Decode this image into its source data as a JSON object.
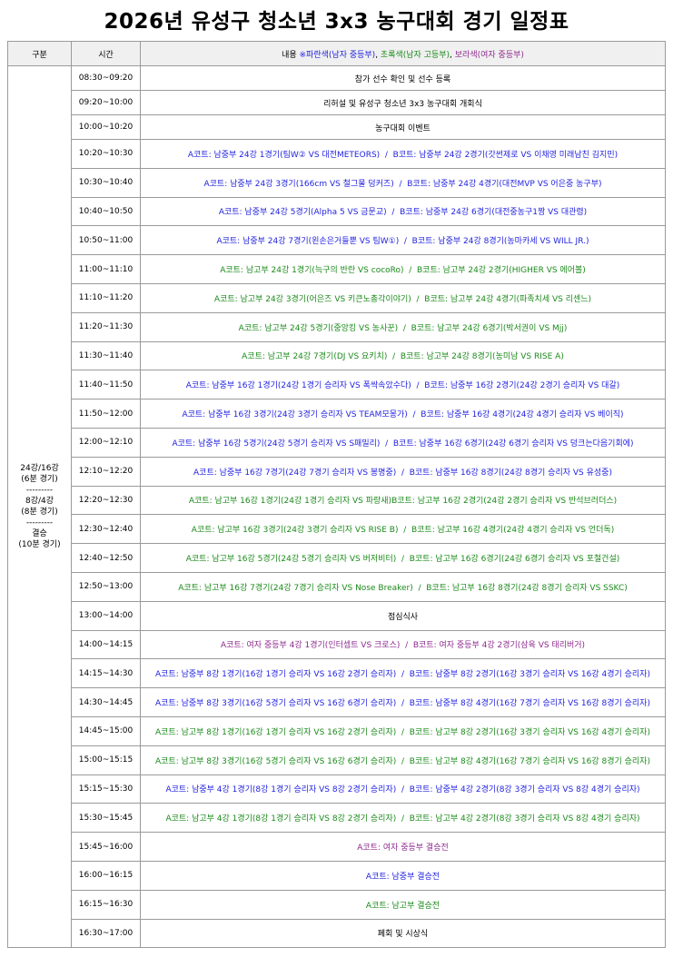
{
  "title": "2026년 유성구 청소년 3x3 농구대회 경기 일정표",
  "header": {
    "group": "구분",
    "time": "시간",
    "content": [
      {
        "text": "내용 ",
        "color": "#000000"
      },
      {
        "text": "※파란색(남자 중등부)",
        "color": "#1f1fe0"
      },
      {
        "text": ", ",
        "color": "#000000"
      },
      {
        "text": "초록색(남자 고등부)",
        "color": "#1b8a1b"
      },
      {
        "text": ", ",
        "color": "#000000"
      },
      {
        "text": "보라색(여자 중등부)",
        "color": "#8e2a8e"
      }
    ]
  },
  "group_label": [
    "24강/16강",
    "(6분 경기)",
    "---------",
    "8강/4강",
    "(8분 경기)",
    "---------",
    "결승",
    "(10분 경기)"
  ],
  "rows": [
    {
      "time": "08:30~09:20",
      "content": "참가 선수 확인 및 선수 등록",
      "color": "#000000"
    },
    {
      "time": "09:20~10:00",
      "content": "리허설 및 유성구 청소년 3x3 농구대회 개회식",
      "color": "#000000"
    },
    {
      "time": "10:00~10:20",
      "content": "농구대회 이벤트",
      "color": "#000000"
    },
    {
      "time": "10:20~10:30",
      "content": "A코트: 남중부 24강 1경기(팀W② VS 대전METEORS)  /  B코트: 남중부 24강 2경기(갓썬제로 VS 이채영 미래남친 김지민)",
      "color": "#1f1fe0"
    },
    {
      "time": "10:30~10:40",
      "content": "A코트: 남중부 24강 3경기(166cm VS 철그물 덩커즈)  /  B코트: 남중부 24강 4경기(대전MVP VS 어은중 농구부)",
      "color": "#1f1fe0"
    },
    {
      "time": "10:40~10:50",
      "content": "A코트: 남중부 24강 5경기(Alpha 5 VS 금문교)  /  B코트: 남중부 24강 6경기(대전중농구1짱 VS 대관령)",
      "color": "#1f1fe0"
    },
    {
      "time": "10:50~11:00",
      "content": "A코트: 남중부 24강 7경기(왼손은거들뿐 VS 팀W①)  /  B코트: 남중부 24강 8경기(농마카세 VS WILL JR.)",
      "color": "#1f1fe0"
    },
    {
      "time": "11:00~11:10",
      "content": "A코트: 남고부 24강 1경기(늑구의 반란 VS cocoRo)  /  B코트: 남고부 24강 2경기(HIGHER VS 에어볼)",
      "color": "#1b8a1b"
    },
    {
      "time": "11:10~11:20",
      "content": "A코트: 남고부 24강 3경기(어은즈 VS 키큰노총각이야기)  /  B코트: 남고부 24강 4경기(파족치세 VS 리센느)",
      "color": "#1b8a1b"
    },
    {
      "time": "11:20~11:30",
      "content": "A코트: 남고부 24강 5경기(중앙킹 VS 농사꾼)  /  B코트: 남고부 24강 6경기(박서권이 VS Mjj)",
      "color": "#1b8a1b"
    },
    {
      "time": "11:30~11:40",
      "content": "A코트: 남고부 24강 7경기(DJ VS 요키치)  /  B코트: 남고부 24강 8경기(농미남 VS RISE A)",
      "color": "#1b8a1b"
    },
    {
      "time": "11:40~11:50",
      "content": "A코트: 남중부 16강 1경기(24강 1경기 승리자 VS 폭싹속았수다)  /  B코트: 남중부 16강 2경기(24강 2경기 승리자 VS 대갈)",
      "color": "#1f1fe0"
    },
    {
      "time": "11:50~12:00",
      "content": "A코트: 남중부 16강 3경기(24강 3경기 승리자 VS TEAM모몽가)  /  B코트: 남중부 16강 4경기(24강 4경기 승리자 VS 베이직)",
      "color": "#1f1fe0"
    },
    {
      "time": "12:00~12:10",
      "content": "A코트: 남중부 16강 5경기(24강 5경기 승리자 VS S패밀리)  /  B코트: 남중부 16강 6경기(24강 6경기 승리자 VS 덩크는다음기회에)",
      "color": "#1f1fe0"
    },
    {
      "time": "12:10~12:20",
      "content": "A코트: 남중부 16강 7경기(24강 7경기 승리자 VS 봉명중)  /  B코트: 남중부 16강 8경기(24강 8경기 승리자 VS 유성중)",
      "color": "#1f1fe0"
    },
    {
      "time": "12:20~12:30",
      "content": "A코트: 남고부 16강 1경기(24강 1경기 승리자 VS 파랑새)B코트: 남고부 16강 2경기(24강 2경기 승리자 VS 반석브러더스)",
      "color": "#1b8a1b"
    },
    {
      "time": "12:30~12:40",
      "content": "A코트: 남고부 16강 3경기(24강 3경기 승리자 VS RISE B)  /  B코트: 남고부 16강 4경기(24강 4경기 승리자 VS 언더독)",
      "color": "#1b8a1b"
    },
    {
      "time": "12:40~12:50",
      "content": "A코트: 남고부 16강 5경기(24강 5경기 승리자 VS 버저비터)  /  B코트: 남고부 16강 6경기(24강 6경기 승리자 VS 포철건설)",
      "color": "#1b8a1b"
    },
    {
      "time": "12:50~13:00",
      "content": "A코트: 남고부 16강 7경기(24강 7경기 승리자 VS Nose Breaker)  /  B코트: 남고부 16강 8경기(24강 8경기 승리자 VS SSKC)",
      "color": "#1b8a1b"
    },
    {
      "time": "13:00~14:00",
      "content": "점심식사",
      "color": "#000000"
    },
    {
      "time": "14:00~14:15",
      "content": "A코트: 여자 중등부 4강 1경기(인터셉트 VS 크로스)  /  B코트: 여자 중등부 4강 2경기(삼육 VS 태리버거)",
      "color": "#8e2a8e"
    },
    {
      "time": "14:15~14:30",
      "content": "A코트: 남중부 8강 1경기(16강 1경기 승리자 VS 16강 2경기 승리자)  /  B코트: 남중부 8강 2경기(16강 3경기 승리자 VS 16강 4경기 승리자)",
      "color": "#1f1fe0"
    },
    {
      "time": "14:30~14:45",
      "content": "A코트: 남중부 8강 3경기(16강 5경기 승리자 VS 16강 6경기 승리자)  /  B코트: 남중부 8강 4경기(16강 7경기 승리자 VS 16강 8경기 승리자)",
      "color": "#1f1fe0"
    },
    {
      "time": "14:45~15:00",
      "content": "A코트: 남고부 8강 1경기(16강 1경기 승리자 VS 16강 2경기 승리자)  /  B코트: 남고부 8강 2경기(16강 3경기 승리자 VS 16강 4경기 승리자)",
      "color": "#1b8a1b"
    },
    {
      "time": "15:00~15:15",
      "content": "A코트: 남고부 8강 3경기(16강 5경기 승리자 VS 16강 6경기 승리자)  /  B코트: 남고부 8강 4경기(16강 7경기 승리자 VS 16강 8경기 승리자)",
      "color": "#1b8a1b"
    },
    {
      "time": "15:15~15:30",
      "content": "A코트: 남중부 4강 1경기(8강 1경기 승리자 VS 8강 2경기 승리자)  /  B코트: 남중부 4강 2경기(8강 3경기 승리자 VS 8강 4경기 승리자)",
      "color": "#1f1fe0"
    },
    {
      "time": "15:30~15:45",
      "content": "A코트: 남고부 4강 1경기(8강 1경기 승리자 VS 8강 2경기 승리자)  /  B코트: 남고부 4강 2경기(8강 3경기 승리자 VS 8강 4경기 승리자)",
      "color": "#1b8a1b"
    },
    {
      "time": "15:45~16:00",
      "content": "A코트: 여자 중등부 결승전",
      "color": "#8e2a8e"
    },
    {
      "time": "16:00~16:15",
      "content": "A코트: 남중부 결승전",
      "color": "#1f1fe0"
    },
    {
      "time": "16:15~16:30",
      "content": "A코트: 남고부 결승전",
      "color": "#1b8a1b"
    },
    {
      "time": "16:30~17:00",
      "content": "폐회 및 시상식",
      "color": "#000000"
    }
  ]
}
